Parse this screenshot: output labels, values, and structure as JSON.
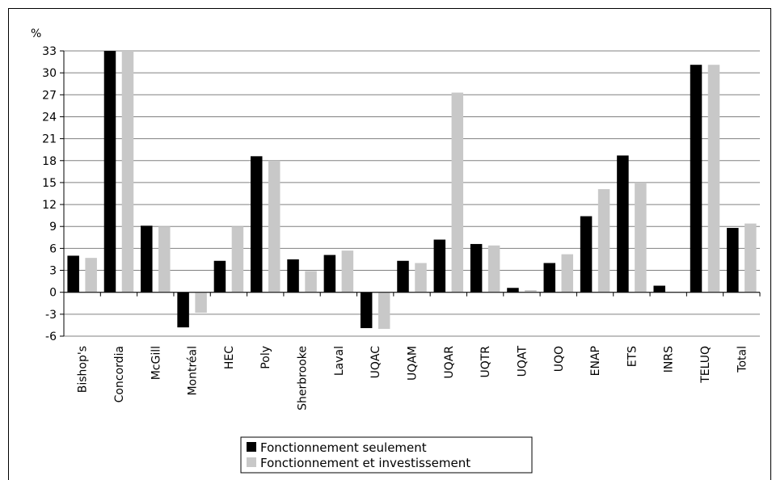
{
  "chart_data": {
    "type": "bar",
    "ylabel": "%",
    "ylim": [
      -6,
      33
    ],
    "yticks": [
      -6,
      -3,
      0,
      3,
      6,
      9,
      12,
      15,
      18,
      21,
      24,
      27,
      30,
      33
    ],
    "categories": [
      "Bishop's",
      "Concordia",
      "McGill",
      "Montréal",
      "HEC",
      "Poly",
      "Sherbrooke",
      "Laval",
      "UQAC",
      "UQAM",
      "UQAR",
      "UQTR",
      "UQAT",
      "UQO",
      "ENAP",
      "ETS",
      "INRS",
      "TELUQ",
      "Total"
    ],
    "series": [
      {
        "name": "Fonctionnement seulement",
        "color": "#000000",
        "values": [
          5.0,
          33.0,
          9.1,
          -4.8,
          4.3,
          18.6,
          4.5,
          5.1,
          -4.9,
          4.3,
          7.2,
          6.6,
          0.6,
          4.0,
          10.4,
          18.7,
          0.9,
          31.1,
          8.8
        ]
      },
      {
        "name": "Fonctionnement et investissement",
        "color": "#c8c8c8",
        "values": [
          4.7,
          33.0,
          9.0,
          -2.8,
          9.0,
          18.0,
          2.9,
          5.7,
          -5.0,
          4.0,
          27.3,
          6.4,
          0.3,
          5.2,
          14.1,
          15.0,
          0.0,
          31.1,
          9.4
        ]
      }
    ],
    "grid": true,
    "legend_position": "bottom-center"
  }
}
